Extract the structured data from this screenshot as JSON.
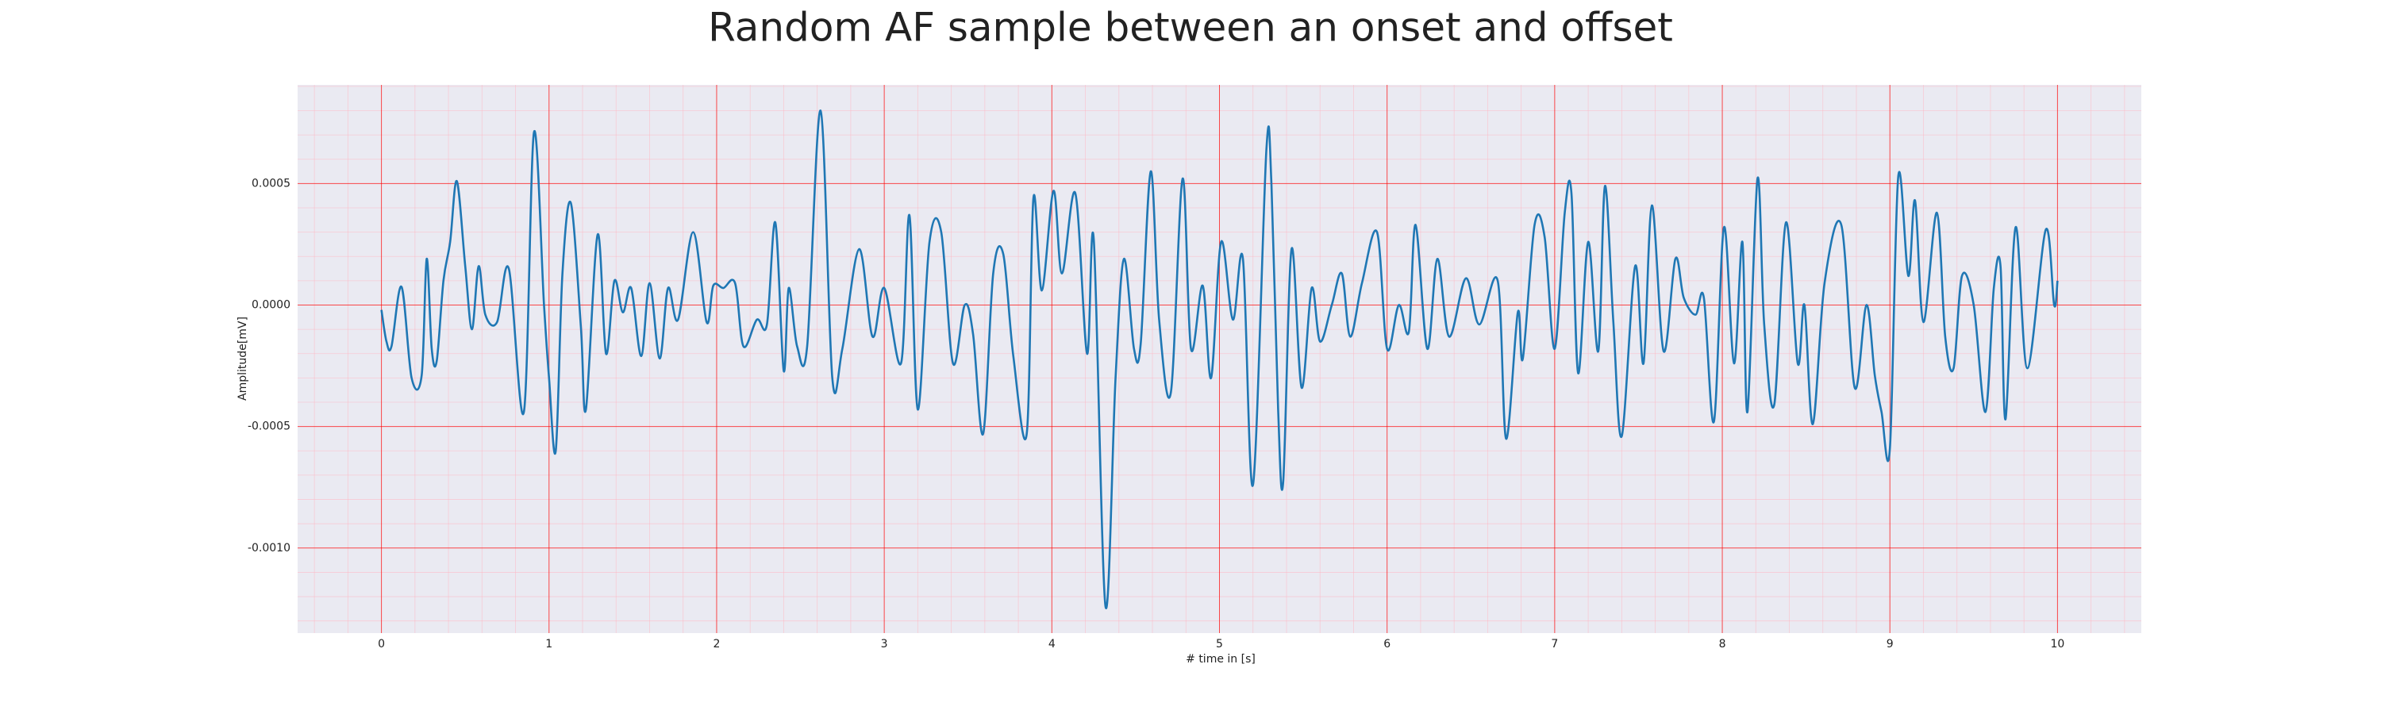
{
  "chart_data": {
    "type": "line",
    "title": "Random AF sample between an onset and offset",
    "x_label": "# time in [s]",
    "y_label": "Amplitude[mV]",
    "color": "#1f77b4",
    "grid": true,
    "grid_color": "#ff0000",
    "minor_grid": true,
    "minor_grid_color": "#ffb6c1",
    "xlim": [
      -0.5,
      10.5
    ],
    "xticks": [
      0,
      1,
      2,
      3,
      4,
      5,
      6,
      7,
      8,
      9,
      10
    ],
    "ylim": [
      -0.00135,
      0.000906
    ],
    "yticks": [
      {
        "value": -0.001,
        "label": "-0.0010"
      },
      -0.0005,
      {
        "value": 0,
        "label": "0.0000"
      },
      0.0005
    ],
    "x": [
      0,
      0.03,
      0.06,
      0.12,
      0.18,
      0.24,
      0.27,
      0.3,
      0.33,
      0.37,
      0.41,
      0.45,
      0.5,
      0.54,
      0.58,
      0.62,
      0.69,
      0.76,
      0.85,
      0.91,
      0.97,
      1.0,
      1.04,
      1.08,
      1.13,
      1.19,
      1.22,
      1.29,
      1.34,
      1.39,
      1.44,
      1.49,
      1.55,
      1.6,
      1.66,
      1.71,
      1.77,
      1.86,
      1.94,
      1.98,
      2.04,
      2.11,
      2.16,
      2.24,
      2.3,
      2.35,
      2.4,
      2.43,
      2.48,
      2.54,
      2.62,
      2.69,
      2.75,
      2.85,
      2.93,
      3.0,
      3.1,
      3.15,
      3.2,
      3.27,
      3.34,
      3.41,
      3.48,
      3.53,
      3.59,
      3.65,
      3.71,
      3.77,
      3.85,
      3.89,
      3.94,
      4.01,
      4.06,
      4.14,
      4.21,
      4.25,
      4.32,
      4.38,
      4.43,
      4.49,
      4.53,
      4.59,
      4.64,
      4.71,
      4.78,
      4.83,
      4.9,
      4.95,
      5.01,
      5.08,
      5.14,
      5.2,
      5.28,
      5.31,
      5.35,
      5.38,
      5.43,
      5.49,
      5.55,
      5.6,
      5.67,
      5.73,
      5.78,
      5.85,
      5.94,
      6.0,
      6.07,
      6.13,
      6.17,
      6.24,
      6.3,
      6.37,
      6.47,
      6.55,
      6.66,
      6.71,
      6.78,
      6.81,
      6.88,
      6.94,
      7.0,
      7.06,
      7.1,
      7.14,
      7.2,
      7.26,
      7.3,
      7.35,
      7.4,
      7.48,
      7.53,
      7.58,
      7.65,
      7.72,
      7.77,
      7.84,
      7.89,
      7.95,
      8.01,
      8.07,
      8.12,
      8.15,
      8.21,
      8.25,
      8.31,
      8.38,
      8.45,
      8.49,
      8.54,
      8.61,
      8.71,
      8.79,
      8.86,
      8.91,
      8.95,
      9.0,
      9.05,
      9.11,
      9.15,
      9.2,
      9.28,
      9.33,
      9.38,
      9.43,
      9.5,
      9.57,
      9.62,
      9.66,
      9.69,
      9.75,
      9.82,
      9.93,
      9.98,
      10.0
    ],
    "values": [
      -2e-05,
      -0.00015,
      -0.00017,
      7.5e-05,
      -0.0003,
      -0.00029,
      0.00019,
      -0.00018,
      -0.00023,
      0.0001,
      0.00026,
      0.00051,
      0.00016,
      -0.0001,
      0.00016,
      -4e-05,
      -7e-05,
      0.00015,
      -0.00044,
      0.00071,
      0,
      -0.0003,
      -0.0006,
      0.00013,
      0.00042,
      -9e-05,
      -0.00043,
      0.00029,
      -0.0002,
      0.0001,
      -3e-05,
      7e-05,
      -0.00021,
      9e-05,
      -0.00022,
      7e-05,
      -6e-05,
      0.0003,
      -7e-05,
      8e-05,
      7e-05,
      9e-05,
      -0.00017,
      -6e-05,
      -8e-05,
      0.00034,
      -0.00027,
      7e-05,
      -0.00017,
      -0.00017,
      0.0008,
      -0.0003,
      -0.00018,
      0.00023,
      -0.00013,
      7e-05,
      -0.00024,
      0.00037,
      -0.00043,
      0.00026,
      0.0003,
      -0.00024,
      0,
      -0.00012,
      -0.00053,
      0.00013,
      0.00021,
      -0.00021,
      -0.00053,
      0.00044,
      6e-05,
      0.00047,
      0.00013,
      0.00046,
      -0.0002,
      0.00027,
      -0.00124,
      -0.0003,
      0.00019,
      -0.00018,
      -0.00016,
      0.00055,
      -6e-05,
      -0.00036,
      0.00052,
      -0.00018,
      8e-05,
      -0.0003,
      0.00026,
      -6e-05,
      0.00019,
      -0.00074,
      0.00064,
      0.0005,
      -0.00043,
      -0.00073,
      0.00023,
      -0.00034,
      7e-05,
      -0.00015,
      0,
      0.00013,
      -0.00013,
      9e-05,
      0.0003,
      -0.00018,
      0,
      -0.00011,
      0.00033,
      -0.00018,
      0.00019,
      -0.00013,
      0.00011,
      -8e-05,
      0.0001,
      -0.00055,
      -3e-05,
      -0.00022,
      0.00033,
      0.00028,
      -0.00018,
      0.00038,
      0.00046,
      -0.00028,
      0.00026,
      -0.00019,
      0.00049,
      -7e-05,
      -0.00054,
      0.00016,
      -0.00024,
      0.00041,
      -0.00019,
      0.00019,
      3e-05,
      -4e-05,
      3e-05,
      -0.00048,
      0.00032,
      -0.00024,
      0.00026,
      -0.00044,
      0.00052,
      -8e-05,
      -0.00041,
      0.00034,
      -0.00024,
      0,
      -0.00049,
      9e-05,
      0.00033,
      -0.00034,
      0,
      -0.00029,
      -0.00044,
      -0.00059,
      0.00053,
      0.00012,
      0.00043,
      -7e-05,
      0.00038,
      -0.00013,
      -0.00026,
      0.00012,
      0,
      -0.00044,
      7e-05,
      0.00016,
      -0.00047,
      0.00032,
      -0.00026,
      0.00031,
      0,
      0.0001
    ]
  }
}
